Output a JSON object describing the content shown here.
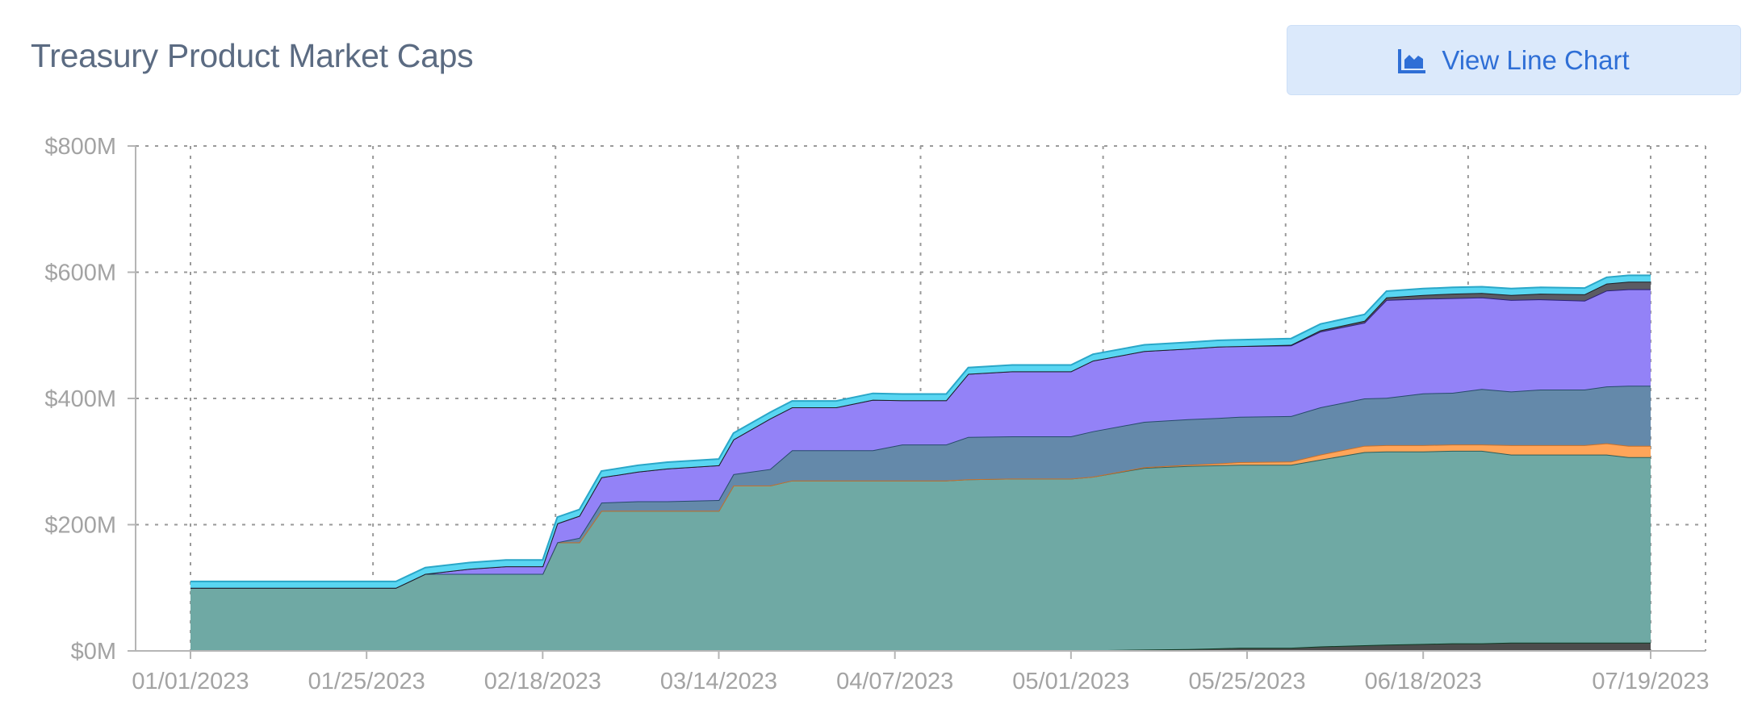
{
  "header": {
    "title": "Treasury Product Market Caps",
    "view_button_label": "View Line Chart",
    "view_button_icon": "area-chart-icon"
  },
  "colors": {
    "accent": "#2f6fd6",
    "button_bg": "#dbe9fb",
    "grid": "#9a9a9a",
    "tick_text": "#a3a3a3"
  },
  "chart_data": {
    "type": "area",
    "stacked": true,
    "grid": true,
    "y_ticks": [
      "$0M",
      "$200M",
      "$400M",
      "$600M",
      "$800M"
    ],
    "ylim": [
      0,
      800
    ],
    "y_unit": "$M",
    "x_ticks": [
      "01/01/2023",
      "01/25/2023",
      "02/18/2023",
      "03/14/2023",
      "04/07/2023",
      "05/01/2023",
      "05/25/2023",
      "06/18/2023",
      "07/19/2023"
    ],
    "x": [
      "01/01/2023",
      "01/15/2023",
      "01/29/2023",
      "02/02/2023",
      "02/08/2023",
      "02/13/2023",
      "02/18/2023",
      "02/20/2023",
      "02/23/2023",
      "02/26/2023",
      "03/03/2023",
      "03/07/2023",
      "03/14/2023",
      "03/16/2023",
      "03/21/2023",
      "03/24/2023",
      "03/30/2023",
      "04/04/2023",
      "04/08/2023",
      "04/14/2023",
      "04/17/2023",
      "04/23/2023",
      "05/01/2023",
      "05/04/2023",
      "05/11/2023",
      "05/17/2023",
      "05/21/2023",
      "05/24/2023",
      "05/31/2023",
      "06/04/2023",
      "06/10/2023",
      "06/13/2023",
      "06/18/2023",
      "06/22/2023",
      "06/26/2023",
      "06/30/2023",
      "07/04/2023",
      "07/10/2023",
      "07/13/2023",
      "07/16/2023",
      "07/19/2023"
    ],
    "series": [
      {
        "color": "#4c4c4c",
        "stroke": "#0f3b24",
        "values": [
          0,
          0,
          0,
          0,
          0,
          0,
          0,
          0,
          0,
          0,
          0,
          0,
          0,
          0,
          0,
          0,
          0,
          0,
          0,
          0,
          0,
          0,
          0,
          1,
          2,
          3,
          4,
          5,
          5,
          7,
          9,
          10,
          11,
          12,
          12,
          13,
          13,
          13,
          13,
          13,
          13
        ]
      },
      {
        "color": "#6fa9a4",
        "stroke": "#2e5e5a",
        "values": [
          100,
          100,
          100,
          122,
          122,
          122,
          122,
          172,
          172,
          222,
          222,
          222,
          222,
          262,
          262,
          270,
          270,
          270,
          270,
          270,
          272,
          273,
          273,
          275,
          288,
          290,
          290,
          290,
          290,
          296,
          306,
          306,
          305,
          305,
          305,
          298,
          298,
          298,
          298,
          294,
          294
        ]
      },
      {
        "color": "#ffa559",
        "stroke": "#c7702b",
        "values": [
          0,
          0,
          0,
          0,
          0,
          0,
          0,
          0,
          0,
          0,
          0,
          0,
          0,
          0,
          0,
          0,
          0,
          0,
          0,
          0,
          0,
          0,
          0,
          0,
          1,
          2,
          3,
          4,
          5,
          8,
          10,
          10,
          10,
          10,
          10,
          15,
          15,
          15,
          18,
          18,
          18
        ]
      },
      {
        "color": "#6489aa",
        "stroke": "#274a6c",
        "values": [
          0,
          0,
          0,
          0,
          0,
          0,
          0,
          0,
          7,
          13,
          15,
          15,
          17,
          18,
          26,
          48,
          48,
          48,
          57,
          57,
          67,
          67,
          67,
          72,
          72,
          72,
          72,
          72,
          72,
          75,
          75,
          75,
          82,
          82,
          88,
          85,
          88,
          88,
          90,
          95,
          95
        ]
      },
      {
        "color": "#9382f7",
        "stroke": "#2a1f7a",
        "values": [
          0,
          0,
          0,
          0,
          8,
          12,
          12,
          30,
          35,
          40,
          47,
          52,
          55,
          55,
          80,
          68,
          68,
          80,
          70,
          70,
          100,
          103,
          103,
          112,
          112,
          112,
          113,
          112,
          112,
          120,
          120,
          155,
          150,
          150,
          145,
          145,
          143,
          141,
          152,
          153,
          153
        ]
      },
      {
        "color": "#5b5b63",
        "stroke": "#1f1f24",
        "values": [
          0,
          0,
          0,
          0,
          0,
          0,
          0,
          0,
          0,
          0,
          0,
          0,
          0,
          0,
          0,
          0,
          0,
          0,
          0,
          0,
          0,
          0,
          0,
          0,
          0,
          0,
          0,
          0,
          1,
          2,
          3,
          4,
          6,
          7,
          7,
          8,
          9,
          10,
          11,
          12,
          12
        ]
      },
      {
        "color": "#59d6f2",
        "stroke": "#2aa7c8",
        "values": [
          10,
          10,
          10,
          10,
          10,
          10,
          10,
          10,
          10,
          10,
          10,
          10,
          10,
          10,
          10,
          10,
          10,
          10,
          10,
          10,
          10,
          10,
          10,
          10,
          10,
          10,
          10,
          10,
          10,
          10,
          10,
          10,
          10,
          10,
          10,
          10,
          10,
          10,
          10,
          10,
          10
        ]
      }
    ]
  }
}
